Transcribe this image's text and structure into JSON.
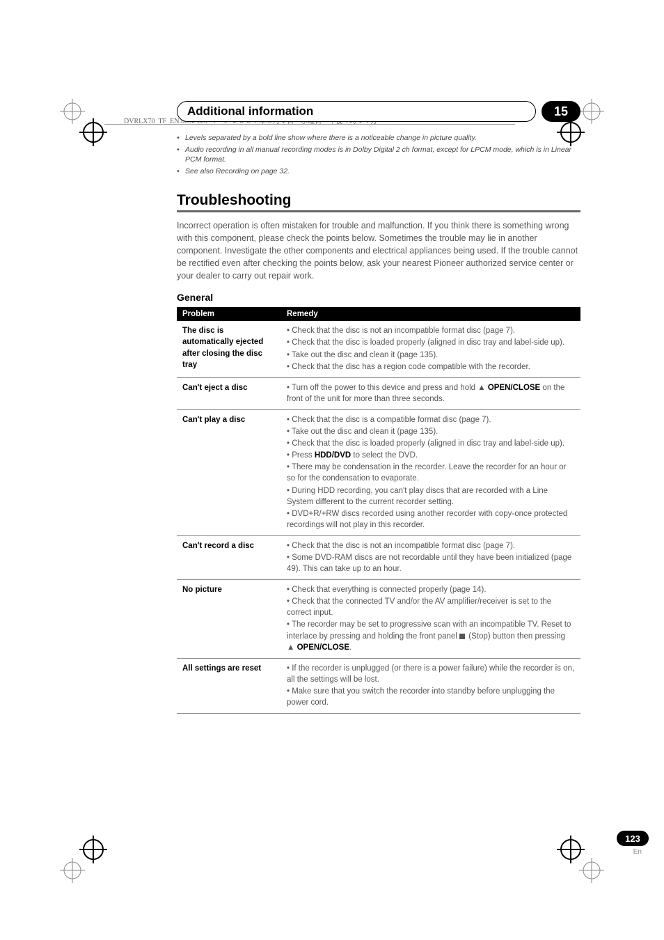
{
  "meta": {
    "book_line": "DVRLX70_TF_EN.book  123 ページ  ２００７年８月１日　水曜日　午後４時１４分"
  },
  "header": {
    "title": "Additional information",
    "chapter": "15"
  },
  "notes": {
    "items": [
      "Levels separated by a bold line show where there is a noticeable change in picture quality.",
      "Audio recording in all manual recording modes is in Dolby Digital 2 ch format, except for LPCM mode, which is in Linear PCM format.",
      "See also Recording on page 32."
    ]
  },
  "section": {
    "title": "Troubleshooting",
    "intro": "Incorrect operation is often mistaken for trouble and malfunction. If you think there is something wrong with this component, please check the points below. Sometimes the trouble may lie in another component. Investigate the other components and electrical appliances being used. If the trouble cannot be rectified even after checking the points below, ask your nearest Pioneer authorized service center or your dealer to carry out repair work."
  },
  "subsection": {
    "title": "General"
  },
  "table": {
    "headers": {
      "problem": "Problem",
      "remedy": "Remedy"
    },
    "rows": [
      {
        "problem": "The disc is automatically ejected after closing the disc tray",
        "remedy_lines": [
          "• Check that the disc is not an incompatible format disc (page 7).",
          "• Check that the disc is loaded properly (aligned in disc tray and label-side up).",
          "• Take out the disc and clean it (page 135).",
          "• Check that the disc has a region code compatible with the recorder."
        ]
      },
      {
        "problem": "Can't eject a disc",
        "remedy_html": "• Turn off the power to this device and press and hold <span class='eject-sym'>▲</span> <strong class='inline'>OPEN/CLOSE</strong> on the front of the unit for more than three seconds."
      },
      {
        "problem": "Can't play a disc",
        "remedy_lines": [
          "• Check that the disc is a compatible format disc (page 7).",
          "• Take out the disc and clean it (page 135).",
          "• Check that the disc is loaded properly (aligned in disc tray and label-side up)."
        ],
        "remedy_html_lines": [
          "• Press <strong class='inline'>HDD/DVD</strong> to select the DVD."
        ],
        "remedy_lines_after": [
          "• There may be condensation in the recorder. Leave the recorder for an hour or so for the condensation to evaporate.",
          "• During HDD recording, you can't play discs that are recorded with a Line System different to the current recorder setting.",
          "• DVD+R/+RW discs recorded using another recorder with copy-once protected recordings will not play in this recorder."
        ]
      },
      {
        "problem": "Can't record a disc",
        "remedy_lines": [
          "• Check that the disc is not an incompatible format disc (page 7).",
          "• Some DVD-RAM discs are not recordable until they have been initialized (page 49). This can take up to an hour."
        ]
      },
      {
        "problem": "No picture",
        "remedy_lines": [
          "• Check that everything is connected properly (page 14).",
          "• Check that the connected TV and/or the AV amplifier/receiver is set to the correct input."
        ],
        "remedy_html_lines": [
          "• The recorder may be set to progressive scan with an incompatible TV. Reset to interlace by pressing and holding the front panel <span class='stop-sym'></span> (Stop) button then pressing <span class='eject-sym'>▲</span> <strong class='inline'>OPEN/CLOSE</strong>."
        ]
      },
      {
        "problem": "All settings are reset",
        "remedy_lines": [
          "• If the recorder is unplugged (or there is a power failure) while the recorder is on, all the settings will be lost.",
          "• Make sure that you switch the recorder into standby before unplugging the power cord."
        ]
      }
    ]
  },
  "footer": {
    "page": "123",
    "lang": "En"
  },
  "colors": {
    "text_body": "#555555",
    "text_strong": "#000000",
    "rule": "#888888",
    "header_underline": "#666666",
    "bg": "#ffffff"
  }
}
